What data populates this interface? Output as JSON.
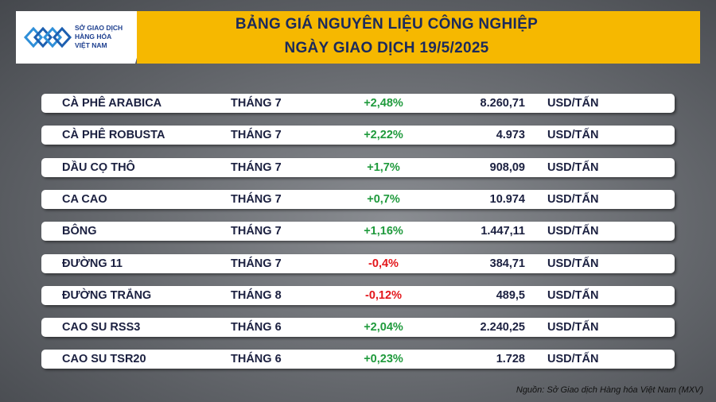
{
  "logo": {
    "lines": [
      "SỞ GIAO DỊCH",
      "HÀNG HÓA",
      "VIỆT NAM"
    ]
  },
  "header": {
    "title": [
      "BẢNG GIÁ NGUYÊN LIỆU CÔNG NGHIỆP",
      "NGÀY GIAO DỊCH 19/5/2025"
    ]
  },
  "table": {
    "rows": [
      {
        "name": "CÀ PHÊ ARABICA",
        "month": "THÁNG 7",
        "change": "+2,48%",
        "price": "8.260,71",
        "unit": "USD/TẤN",
        "color": "#1f9a3c"
      },
      {
        "name": "CÀ PHÊ ROBUSTA",
        "month": "THÁNG 7",
        "change": "+2,22%",
        "price": "4.973",
        "unit": "USD/TẤN",
        "color": "#1f9a3c"
      },
      {
        "name": "DẦU CỌ THÔ",
        "month": "THÁNG 7",
        "change": "+1,7%",
        "price": "908,09",
        "unit": "USD/TẤN",
        "color": "#1f9a3c"
      },
      {
        "name": "CA CAO",
        "month": "THÁNG 7",
        "change": "+0,7%",
        "price": "10.974",
        "unit": "USD/TẤN",
        "color": "#1f9a3c"
      },
      {
        "name": "BÔNG",
        "month": "THÁNG 7",
        "change": "+1,16%",
        "price": "1.447,11",
        "unit": "USD/TẤN",
        "color": "#1f9a3c"
      },
      {
        "name": "ĐƯỜNG 11",
        "month": "THÁNG 7",
        "change": "-0,4%",
        "price": "384,71",
        "unit": "USD/TẤN",
        "color": "#e3161b"
      },
      {
        "name": "ĐƯỜNG TRẮNG",
        "month": "THÁNG 8",
        "change": "-0,12%",
        "price": "489,5",
        "unit": "USD/TẤN",
        "color": "#e3161b"
      },
      {
        "name": "CAO SU RSS3",
        "month": "THÁNG 6",
        "change": "+2,04%",
        "price": "2.240,25",
        "unit": "USD/TẤN",
        "color": "#1f9a3c"
      },
      {
        "name": "CAO SU TSR20",
        "month": "THÁNG 6",
        "change": "+0,23%",
        "price": "1.728",
        "unit": "USD/TẤN",
        "color": "#1f9a3c"
      }
    ]
  },
  "footer": {
    "source": "Nguồn: Sở Giao dịch Hàng hóa Việt Nam (MXV)"
  }
}
